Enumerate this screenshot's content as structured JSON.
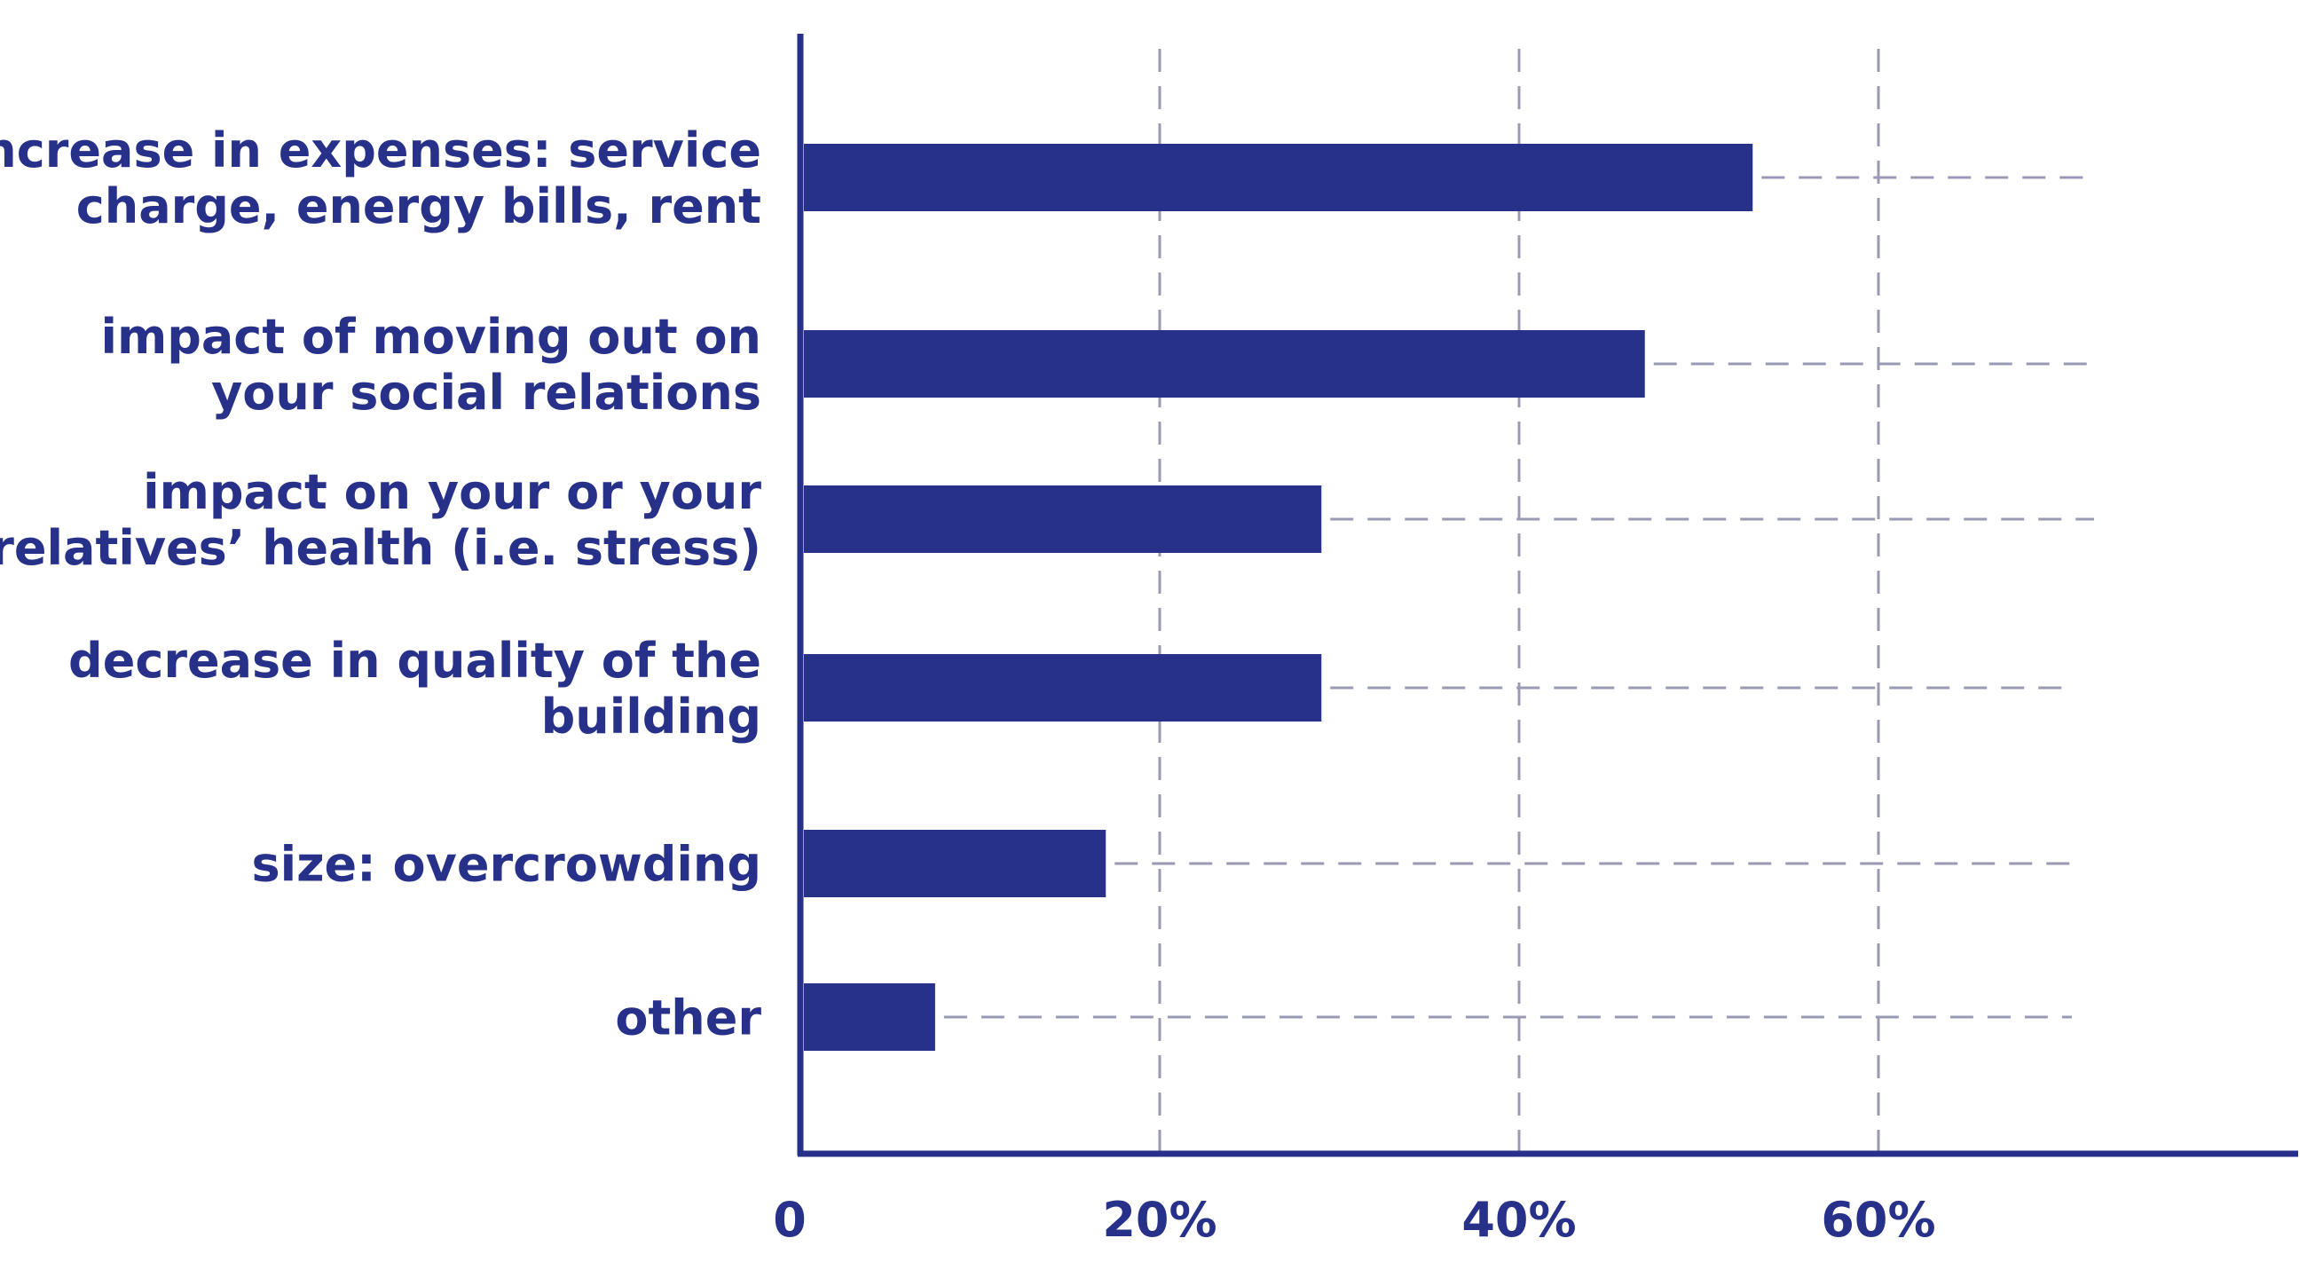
{
  "colors": {
    "bar": "#283189",
    "axis": "#283189",
    "text": "#283189",
    "grid": "#9a9bb3"
  },
  "chart_data": {
    "type": "bar",
    "orientation": "horizontal",
    "title": "",
    "xlabel": "",
    "ylabel": "",
    "xlim": [
      0,
      83
    ],
    "grid": "dashed",
    "x_ticks": [
      {
        "value": 0,
        "label": "0"
      },
      {
        "value": 20,
        "label": "20%"
      },
      {
        "value": 40,
        "label": "40%"
      },
      {
        "value": 60,
        "label": "60%"
      }
    ],
    "categories": [
      [
        "increase in expenses: service",
        "charge, energy bills, rent"
      ],
      [
        "impact of moving out on",
        "your social relations"
      ],
      [
        "impact on your or your",
        "relatives’ health (i.e. stress)"
      ],
      [
        "decrease in quality of the",
        "building"
      ],
      [
        "size: overcrowding"
      ],
      [
        "other"
      ]
    ],
    "values": [
      53,
      47,
      29,
      29,
      17,
      7.5
    ],
    "unit": "%"
  }
}
